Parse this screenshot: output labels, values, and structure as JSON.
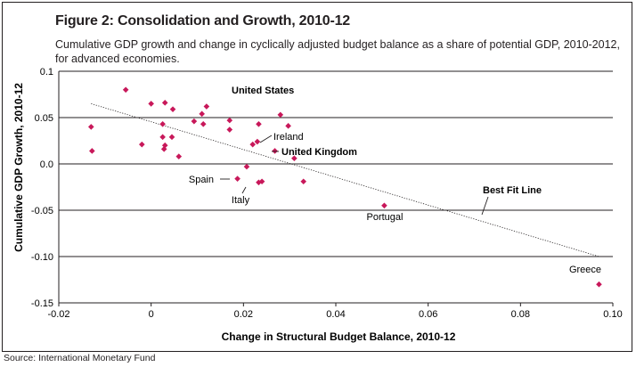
{
  "figure": {
    "title": "Figure 2: Consolidation and Growth, 2010-12",
    "subtitle": "Cumulative GDP growth and change in cyclically adjusted budget balance as a share of potential GDP, 2010-2012, for advanced economies.",
    "source": "Source: International Monetary Fund"
  },
  "chart_data": {
    "type": "scatter",
    "title": "Figure 2: Consolidation and Growth, 2010-12",
    "xlabel": "Change in Structural Budget Balance, 2010-12",
    "ylabel": "Cumulative GDP Growth, 2010-12",
    "xlim": [
      -0.02,
      0.1
    ],
    "ylim": [
      -0.15,
      0.1
    ],
    "x_ticks": [
      "-0.02",
      "0",
      "0.02",
      "0.04",
      "0.06",
      "0.08",
      "0.10"
    ],
    "y_ticks": [
      "0.1",
      "0.05",
      "0.0",
      "-0.05",
      "-0.10",
      "-0.15"
    ],
    "grid": "horizontal",
    "marker_color": "#c8185a",
    "series": [
      {
        "points": [
          {
            "x": -0.013,
            "y": 0.04
          },
          {
            "x": -0.0128,
            "y": 0.014
          },
          {
            "x": -0.0055,
            "y": 0.08
          },
          {
            "x": -0.002,
            "y": 0.021
          },
          {
            "x": 0.0,
            "y": 0.065
          },
          {
            "x": 0.0025,
            "y": 0.043
          },
          {
            "x": 0.0025,
            "y": 0.029
          },
          {
            "x": 0.0028,
            "y": 0.016
          },
          {
            "x": 0.003,
            "y": 0.02
          },
          {
            "x": 0.003,
            "y": 0.066
          },
          {
            "x": 0.0047,
            "y": 0.059
          },
          {
            "x": 0.0045,
            "y": 0.029
          },
          {
            "x": 0.006,
            "y": 0.008
          },
          {
            "x": 0.0093,
            "y": 0.046
          },
          {
            "x": 0.011,
            "y": 0.054
          },
          {
            "x": 0.0113,
            "y": 0.043
          },
          {
            "x": 0.012,
            "y": 0.062
          },
          {
            "x": 0.017,
            "y": 0.047
          },
          {
            "x": 0.017,
            "y": 0.037
          },
          {
            "x": 0.0187,
            "y": -0.016
          },
          {
            "x": 0.0207,
            "y": -0.003
          },
          {
            "x": 0.022,
            "y": 0.021
          },
          {
            "x": 0.023,
            "y": 0.024
          },
          {
            "x": 0.0233,
            "y": 0.043
          },
          {
            "x": 0.0233,
            "y": -0.02
          },
          {
            "x": 0.024,
            "y": -0.019
          },
          {
            "x": 0.0268,
            "y": 0.014,
            "label": "United Kingdom"
          },
          {
            "x": 0.028,
            "y": 0.053
          },
          {
            "x": 0.0297,
            "y": 0.041
          },
          {
            "x": 0.031,
            "y": 0.006
          },
          {
            "x": 0.033,
            "y": -0.019
          },
          {
            "x": 0.0505,
            "y": -0.045,
            "label": "Portugal"
          },
          {
            "x": 0.097,
            "y": -0.13,
            "label": "Greece"
          }
        ]
      }
    ],
    "best_fit_line": {
      "label": "Best Fit Line",
      "x": [
        -0.013,
        0.097
      ],
      "y": [
        0.065,
        -0.1
      ]
    },
    "annotations": [
      {
        "text": "United States",
        "bold": true
      },
      {
        "text": "Ireland",
        "bold": false
      },
      {
        "text": "United Kingdom",
        "bold": true
      },
      {
        "text": "Spain",
        "bold": false
      },
      {
        "text": "Italy",
        "bold": false
      },
      {
        "text": "Portugal",
        "bold": false
      },
      {
        "text": "Greece",
        "bold": false
      },
      {
        "text": "Best Fit Line",
        "bold": true
      }
    ]
  }
}
